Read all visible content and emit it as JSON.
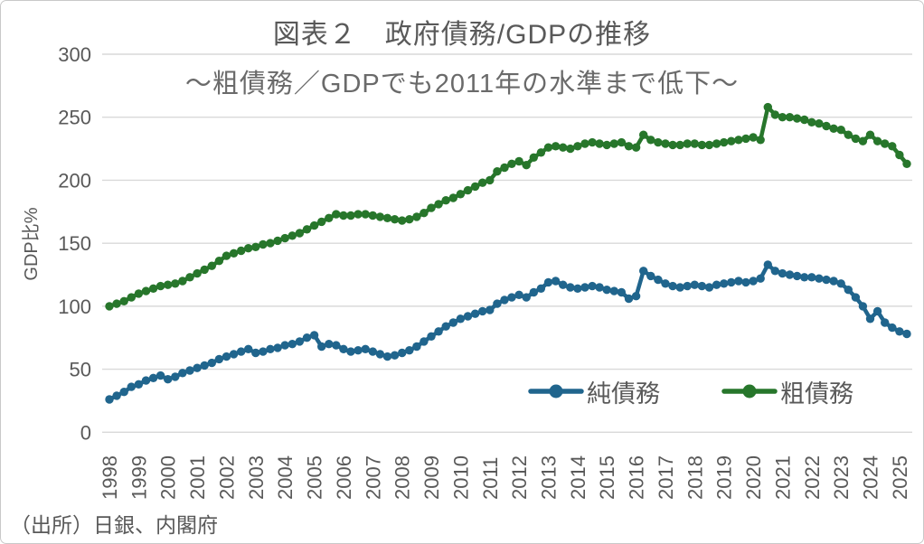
{
  "frame": {
    "background": "#ffffff",
    "border_color": "#c9c9c9"
  },
  "header": {
    "title": "図表２　政府債務/GDPの推移",
    "subtitle": "～粗債務／GDPでも2011年の水準まで低下～"
  },
  "source_note": "（出所）日銀、内閣府",
  "colors": {
    "grid": "#d9d9d9",
    "axis_text": "#595959",
    "net_series": "#20658d",
    "gross_series": "#27762b"
  },
  "legend": {
    "items": [
      {
        "label": "純債務",
        "color": "#20658d"
      },
      {
        "label": "粗債務",
        "color": "#27762b"
      }
    ]
  },
  "chart_data": {
    "type": "line",
    "title": "図表２　政府債務/GDPの推移",
    "subtitle": "～粗債務／GDPでも2011年の水準まで低下～",
    "xlabel": "",
    "ylabel": "GDP比%",
    "ylim": [
      0,
      300
    ],
    "y_ticks": [
      0,
      50,
      100,
      150,
      200,
      250,
      300
    ],
    "grid": "horizontal",
    "legend_position": "inside-bottom-right",
    "x_frequency": "quarterly",
    "x_start": "1998Q1",
    "x_end": "2025Q2",
    "x_tick_labels": [
      "1998",
      "1999",
      "2000",
      "2001",
      "2002",
      "2003",
      "2004",
      "2005",
      "2006",
      "2007",
      "2008",
      "2009",
      "2010",
      "2011",
      "2012",
      "2013",
      "2014",
      "2015",
      "2016",
      "2017",
      "2018",
      "2019",
      "2020",
      "2021",
      "2022",
      "2023",
      "2024",
      "2025"
    ],
    "series": [
      {
        "name": "純債務",
        "color": "#20658d",
        "values": [
          26,
          29,
          32,
          36,
          38,
          41,
          43,
          45,
          42,
          44,
          47,
          49,
          51,
          53,
          55,
          58,
          60,
          62,
          64,
          66,
          63,
          64,
          66,
          67,
          69,
          70,
          72,
          75,
          77,
          68,
          70,
          69,
          66,
          64,
          65,
          66,
          64,
          62,
          60,
          61,
          63,
          65,
          68,
          72,
          76,
          80,
          84,
          87,
          90,
          92,
          94,
          96,
          97,
          102,
          105,
          107,
          109,
          107,
          111,
          114,
          119,
          120,
          117,
          115,
          114,
          115,
          116,
          115,
          113,
          112,
          111,
          106,
          108,
          128,
          124,
          121,
          118,
          116,
          115,
          116,
          117,
          116,
          115,
          117,
          118,
          119,
          120,
          119,
          120,
          122,
          133,
          128,
          126,
          125,
          124,
          123,
          123,
          122,
          121,
          120,
          118,
          113,
          107,
          100,
          90,
          96,
          87,
          83,
          80,
          78
        ]
      },
      {
        "name": "粗債務",
        "color": "#27762b",
        "values": [
          100,
          102,
          104,
          107,
          110,
          112,
          114,
          116,
          117,
          118,
          120,
          123,
          126,
          129,
          132,
          136,
          140,
          142,
          144,
          146,
          147,
          149,
          150,
          152,
          154,
          156,
          158,
          161,
          164,
          167,
          170,
          173,
          172,
          172,
          173,
          173,
          172,
          171,
          170,
          169,
          168,
          169,
          171,
          174,
          178,
          181,
          184,
          186,
          189,
          192,
          195,
          198,
          200,
          207,
          210,
          213,
          215,
          212,
          218,
          222,
          226,
          227,
          226,
          225,
          227,
          229,
          230,
          229,
          228,
          229,
          230,
          227,
          226,
          236,
          232,
          230,
          229,
          228,
          228,
          229,
          229,
          228,
          228,
          229,
          230,
          231,
          232,
          233,
          234,
          232,
          258,
          252,
          250,
          250,
          249,
          248,
          246,
          245,
          243,
          241,
          240,
          236,
          233,
          231,
          236,
          231,
          229,
          227,
          220,
          213
        ]
      }
    ]
  }
}
